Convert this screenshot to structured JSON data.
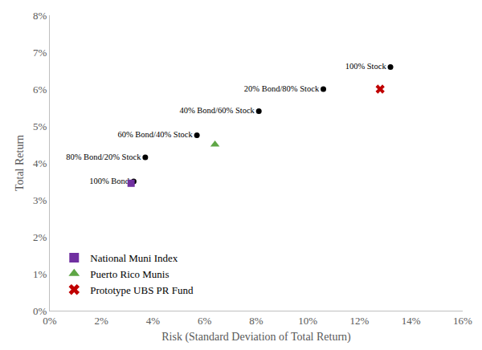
{
  "chart_data": {
    "type": "scatter",
    "x_label": "Risk (Standard Deviation of Total Return)",
    "y_label": "Total Return",
    "xlim": [
      0,
      16
    ],
    "ylim": [
      0,
      8
    ],
    "xticks": [
      {
        "value": 0,
        "label": "0%"
      },
      {
        "value": 2,
        "label": "2%"
      },
      {
        "value": 4,
        "label": "4%"
      },
      {
        "value": 6,
        "label": "6%"
      },
      {
        "value": 8,
        "label": "8%"
      },
      {
        "value": 10,
        "label": "10%"
      },
      {
        "value": 12,
        "label": "12%"
      },
      {
        "value": 14,
        "label": "14%"
      },
      {
        "value": 16,
        "label": "16%"
      }
    ],
    "yticks": [
      {
        "value": 0,
        "label": "0%"
      },
      {
        "value": 1,
        "label": "1%"
      },
      {
        "value": 2,
        "label": "2%"
      },
      {
        "value": 3,
        "label": "3%"
      },
      {
        "value": 4,
        "label": "4%"
      },
      {
        "value": 5,
        "label": "5%"
      },
      {
        "value": 6,
        "label": "6%"
      },
      {
        "value": 7,
        "label": "7%"
      },
      {
        "value": 8,
        "label": "8%"
      }
    ],
    "grid": false,
    "legend": "lower left",
    "series": [
      {
        "color": "#000000",
        "marker": "circle",
        "x": [
          3.25,
          3.7,
          5.7,
          8.1,
          10.6,
          13.2
        ],
        "values": [
          3.5,
          4.15,
          4.75,
          5.4,
          6.0,
          6.6
        ],
        "labels": [
          "100% Bond",
          "80% Bond/20% Stock",
          "60% Bond/40% Stock",
          "40% Bond/60% Stock",
          "20% Bond/80% Stock",
          "100% Stock"
        ]
      },
      {
        "name": "National Muni Index",
        "color": "#7030a0",
        "marker": "square",
        "x": [
          3.15
        ],
        "values": [
          3.45
        ]
      },
      {
        "name": "Puerto Rico Munis",
        "color": "#5ea645",
        "marker": "triangle",
        "x": [
          6.4
        ],
        "values": [
          4.5
        ]
      },
      {
        "name": "Prototype UBS PR Fund",
        "color": "#c00000",
        "marker": "x",
        "x": [
          12.8
        ],
        "values": [
          6.0
        ]
      }
    ]
  }
}
